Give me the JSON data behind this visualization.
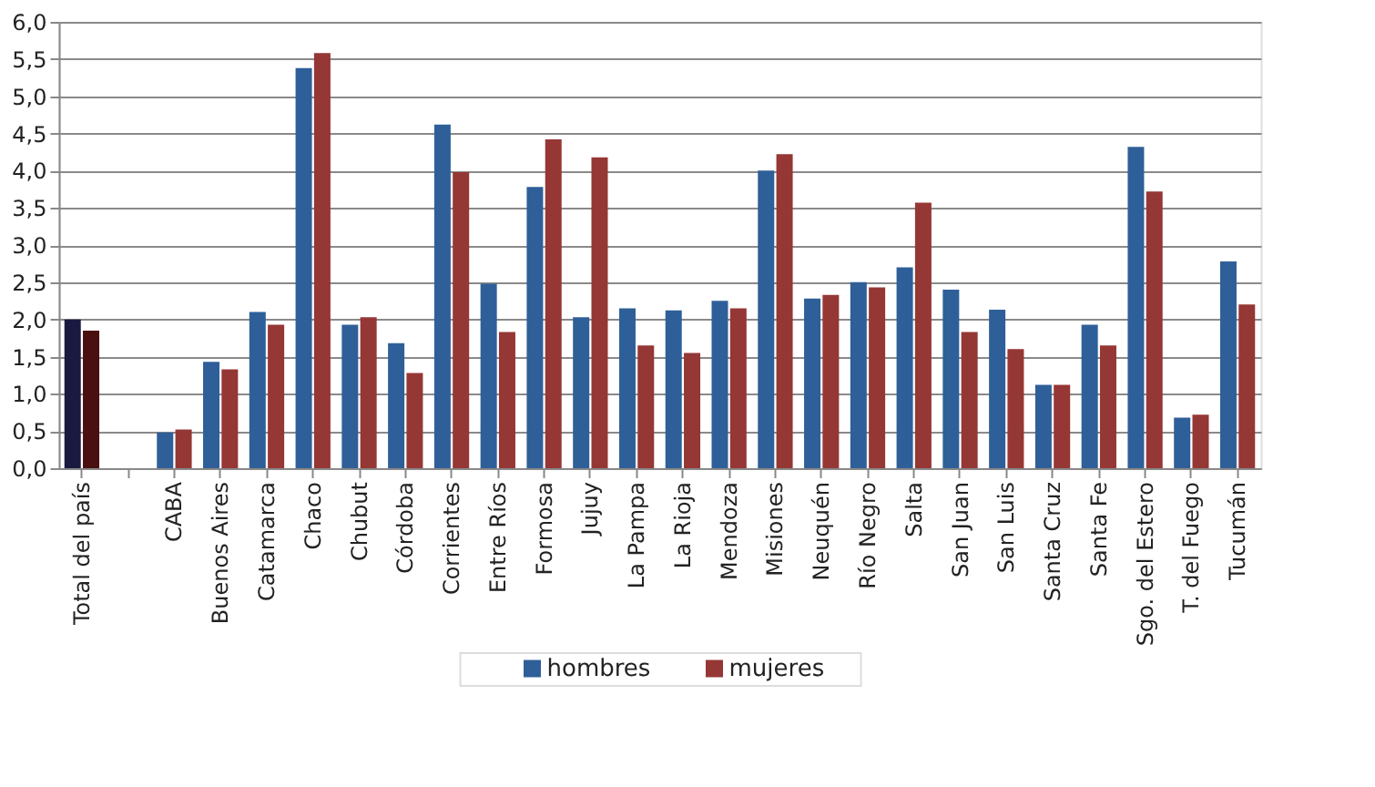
{
  "chart_data": {
    "type": "bar",
    "categories": [
      "Total del país",
      null,
      "CABA",
      "Buenos Aires",
      "Catamarca",
      "Chaco",
      "Chubut",
      "Córdoba",
      "Corrientes",
      "Entre Ríos",
      "Formosa",
      "Jujuy",
      "La Pampa",
      "La Rioja",
      "Mendoza",
      "Misiones",
      "Neuquén",
      "Río Negro",
      "Salta",
      "San Juan",
      "San Luis",
      "Santa Cruz",
      "Santa Fe",
      "Sgo. del Estero",
      "T. del Fuego",
      "Tucumán"
    ],
    "series": [
      {
        "name": "hombres",
        "color": "#2f5f98",
        "colors": [
          "#1a1a40",
          "#2f5f98",
          "#2f5f98",
          "#2f5f98",
          "#2f5f98",
          "#2f5f98",
          "#2f5f98",
          "#2f5f98",
          "#2f5f98",
          "#2f5f98",
          "#2f5f98",
          "#2f5f98",
          "#2f5f98",
          "#2f5f98",
          "#2f5f98",
          "#2f5f98",
          "#2f5f98",
          "#2f5f98",
          "#2f5f98",
          "#2f5f98",
          "#2f5f98",
          "#2f5f98",
          "#2f5f98",
          "#2f5f98",
          "#2f5f98",
          "#2f5f98"
        ],
        "values": [
          2.0,
          null,
          0.48,
          1.43,
          2.1,
          5.38,
          1.93,
          1.68,
          4.62,
          2.48,
          3.78,
          2.03,
          2.15,
          2.12,
          2.25,
          4.0,
          2.28,
          2.5,
          2.7,
          2.4,
          2.13,
          1.12,
          1.93,
          4.32,
          0.68,
          2.78
        ]
      },
      {
        "name": "mujeres",
        "color": "#953735",
        "colors": [
          "#4a1010",
          "#953735",
          "#953735",
          "#953735",
          "#953735",
          "#953735",
          "#953735",
          "#953735",
          "#953735",
          "#953735",
          "#953735",
          "#953735",
          "#953735",
          "#953735",
          "#953735",
          "#953735",
          "#953735",
          "#953735",
          "#953735",
          "#953735",
          "#953735",
          "#953735",
          "#953735",
          "#953735",
          "#953735",
          "#953735"
        ],
        "values": [
          1.85,
          null,
          0.52,
          1.33,
          1.93,
          5.58,
          2.03,
          1.28,
          3.98,
          1.83,
          4.42,
          4.18,
          1.65,
          1.55,
          2.15,
          4.22,
          2.33,
          2.43,
          3.57,
          1.83,
          1.6,
          1.12,
          1.65,
          3.72,
          0.72,
          2.2
        ]
      }
    ],
    "ylim": [
      0,
      6
    ],
    "yticks": [
      {
        "value": 0,
        "label": "0,0"
      },
      {
        "value": 0.5,
        "label": "0,5"
      },
      {
        "value": 1,
        "label": "1,0"
      },
      {
        "value": 1.5,
        "label": "1,5"
      },
      {
        "value": 2,
        "label": "2,0"
      },
      {
        "value": 2.5,
        "label": "2,5"
      },
      {
        "value": 3,
        "label": "3,0"
      },
      {
        "value": 3.5,
        "label": "3,5"
      },
      {
        "value": 4,
        "label": "4,0"
      },
      {
        "value": 4.5,
        "label": "4,5"
      },
      {
        "value": 5,
        "label": "5,0"
      },
      {
        "value": 5.5,
        "label": "5,5"
      },
      {
        "value": 6,
        "label": "6,0"
      }
    ],
    "grid": "y",
    "legend": "bottom"
  }
}
